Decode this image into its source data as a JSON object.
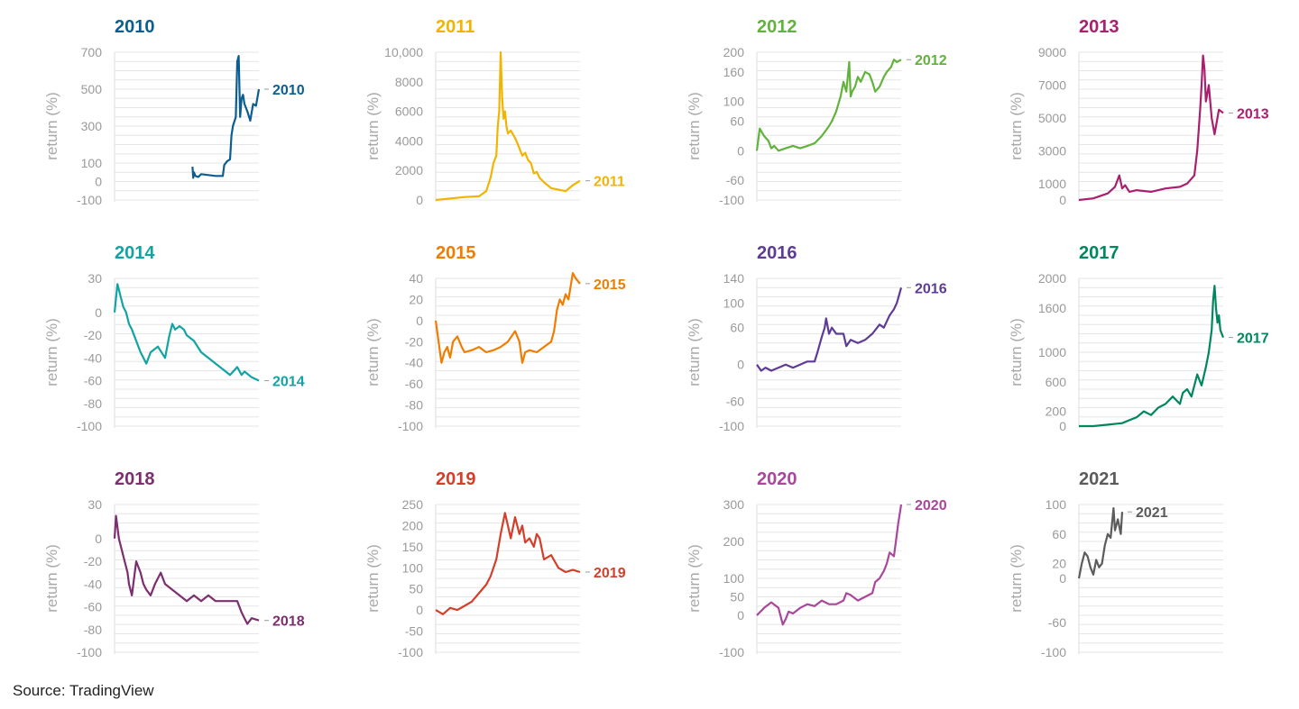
{
  "source": "Source: TradingView",
  "axis_label": "return (%)",
  "chart_data": [
    {
      "type": "line",
      "title": "2010",
      "color": "#0b5e8f",
      "end_label": "2010",
      "ylabel": "return (%)",
      "xlabel": "",
      "grid": true,
      "ylim": [
        -100,
        700
      ],
      "yticks": [
        700,
        500,
        300,
        100,
        0,
        -100
      ],
      "ytick_labels": [
        "700",
        "500",
        "300",
        "100",
        "0",
        "-100"
      ],
      "x": [
        0.54,
        0.545,
        0.55,
        0.56,
        0.58,
        0.6,
        0.65,
        0.7,
        0.75,
        0.76,
        0.78,
        0.8,
        0.81,
        0.82,
        0.84,
        0.85,
        0.86,
        0.87,
        0.88,
        0.89,
        0.9,
        0.92,
        0.94,
        0.96,
        0.98,
        1.0
      ],
      "values": [
        80,
        20,
        50,
        30,
        25,
        40,
        35,
        30,
        30,
        90,
        110,
        120,
        250,
        300,
        350,
        650,
        680,
        350,
        450,
        470,
        420,
        380,
        330,
        420,
        410,
        500
      ]
    },
    {
      "type": "line",
      "title": "2011",
      "color": "#f2b400",
      "end_label": "2011",
      "ylabel": "return (%)",
      "xlabel": "",
      "grid": true,
      "ylim": [
        0,
        10000
      ],
      "yticks": [
        10000,
        8000,
        6000,
        4000,
        2000,
        0
      ],
      "ytick_labels": [
        "10,000",
        "8000",
        "6000",
        "4000",
        "2000",
        "0"
      ],
      "x": [
        0.0,
        0.1,
        0.2,
        0.3,
        0.35,
        0.38,
        0.4,
        0.42,
        0.43,
        0.44,
        0.45,
        0.46,
        0.47,
        0.48,
        0.49,
        0.5,
        0.52,
        0.55,
        0.58,
        0.6,
        0.62,
        0.64,
        0.66,
        0.68,
        0.7,
        0.72,
        0.75,
        0.8,
        0.85,
        0.9,
        0.95,
        1.0
      ],
      "values": [
        0,
        100,
        200,
        250,
        600,
        1500,
        2500,
        3000,
        5000,
        6000,
        10000,
        7000,
        5500,
        6000,
        5000,
        4500,
        4700,
        4200,
        3500,
        3000,
        3200,
        2700,
        2500,
        1800,
        1900,
        1500,
        1200,
        800,
        700,
        600,
        1000,
        1300
      ]
    },
    {
      "type": "line",
      "title": "2012",
      "color": "#62b33b",
      "end_label": "2012",
      "ylabel": "return (%)",
      "xlabel": "",
      "grid": true,
      "ylim": [
        -100,
        200
      ],
      "yticks": [
        200,
        160,
        100,
        60,
        0,
        -60,
        -100
      ],
      "ytick_labels": [
        "200",
        "160",
        "100",
        "60",
        "0",
        "-60",
        "-100"
      ],
      "x": [
        0.0,
        0.02,
        0.05,
        0.08,
        0.1,
        0.12,
        0.15,
        0.2,
        0.25,
        0.3,
        0.35,
        0.4,
        0.45,
        0.5,
        0.52,
        0.55,
        0.58,
        0.6,
        0.62,
        0.64,
        0.65,
        0.66,
        0.68,
        0.7,
        0.72,
        0.75,
        0.78,
        0.8,
        0.82,
        0.85,
        0.88,
        0.9,
        0.93,
        0.95,
        0.97,
        1.0
      ],
      "values": [
        0,
        45,
        30,
        20,
        5,
        10,
        0,
        5,
        10,
        5,
        10,
        15,
        30,
        50,
        60,
        80,
        110,
        140,
        120,
        180,
        110,
        120,
        130,
        150,
        140,
        160,
        155,
        140,
        120,
        130,
        150,
        160,
        170,
        185,
        180,
        185
      ]
    },
    {
      "type": "line",
      "title": "2013",
      "color": "#a8206e",
      "end_label": "2013",
      "ylabel": "return (%)",
      "xlabel": "",
      "grid": true,
      "ylim": [
        0,
        9000
      ],
      "yticks": [
        9000,
        7000,
        5000,
        3000,
        1000,
        0
      ],
      "ytick_labels": [
        "9000",
        "7000",
        "5000",
        "3000",
        "1000",
        "0"
      ],
      "x": [
        0.0,
        0.1,
        0.2,
        0.25,
        0.28,
        0.3,
        0.32,
        0.35,
        0.4,
        0.5,
        0.6,
        0.7,
        0.75,
        0.8,
        0.82,
        0.84,
        0.85,
        0.86,
        0.87,
        0.88,
        0.9,
        0.92,
        0.94,
        0.95,
        0.97,
        1.0
      ],
      "values": [
        0,
        100,
        400,
        800,
        1500,
        700,
        900,
        500,
        600,
        500,
        700,
        800,
        1000,
        1500,
        3000,
        5500,
        7000,
        8800,
        8000,
        6000,
        7000,
        5000,
        4000,
        4500,
        5500,
        5300
      ]
    },
    {
      "type": "line",
      "title": "2014",
      "color": "#12a3a4",
      "end_label": "2014",
      "ylabel": "return (%)",
      "xlabel": "",
      "grid": true,
      "ylim": [
        -100,
        30
      ],
      "yticks": [
        30,
        0,
        -20,
        -40,
        -60,
        -80,
        -100
      ],
      "ytick_labels": [
        "30",
        "0",
        "-20",
        "-40",
        "-60",
        "-80",
        "-100"
      ],
      "x": [
        0.0,
        0.02,
        0.04,
        0.06,
        0.08,
        0.1,
        0.12,
        0.15,
        0.18,
        0.2,
        0.22,
        0.25,
        0.3,
        0.35,
        0.38,
        0.4,
        0.42,
        0.45,
        0.48,
        0.5,
        0.55,
        0.6,
        0.65,
        0.7,
        0.75,
        0.8,
        0.85,
        0.88,
        0.9,
        0.95,
        1.0
      ],
      "values": [
        0,
        25,
        15,
        5,
        0,
        -10,
        -15,
        -25,
        -35,
        -40,
        -45,
        -35,
        -30,
        -40,
        -20,
        -10,
        -15,
        -12,
        -15,
        -20,
        -25,
        -35,
        -40,
        -45,
        -50,
        -55,
        -48,
        -55,
        -52,
        -57,
        -60
      ]
    },
    {
      "type": "line",
      "title": "2015",
      "color": "#f07d00",
      "end_label": "2015",
      "ylabel": "return (%)",
      "xlabel": "",
      "grid": true,
      "ylim": [
        -100,
        50
      ],
      "yticks": [
        40,
        20,
        0,
        -20,
        -40,
        -60,
        -80,
        -100
      ],
      "ytick_labels": [
        "40",
        "20",
        "0",
        "-20",
        "-40",
        "-60",
        "-80",
        "-100"
      ],
      "x": [
        0.0,
        0.02,
        0.04,
        0.06,
        0.08,
        0.1,
        0.12,
        0.15,
        0.18,
        0.2,
        0.25,
        0.3,
        0.35,
        0.4,
        0.45,
        0.5,
        0.55,
        0.58,
        0.6,
        0.62,
        0.65,
        0.7,
        0.75,
        0.8,
        0.82,
        0.84,
        0.86,
        0.88,
        0.9,
        0.92,
        0.95,
        0.97,
        1.0
      ],
      "values": [
        0,
        -20,
        -40,
        -30,
        -25,
        -35,
        -20,
        -15,
        -25,
        -30,
        -28,
        -25,
        -30,
        -28,
        -25,
        -20,
        -10,
        -20,
        -40,
        -30,
        -28,
        -30,
        -25,
        -20,
        -10,
        10,
        20,
        15,
        25,
        20,
        45,
        40,
        35
      ]
    },
    {
      "type": "line",
      "title": "2016",
      "color": "#5d3b96",
      "end_label": "2016",
      "ylabel": "return (%)",
      "xlabel": "",
      "grid": true,
      "ylim": [
        -100,
        140
      ],
      "yticks": [
        140,
        100,
        60,
        0,
        -60,
        -100
      ],
      "ytick_labels": [
        "140",
        "100",
        "60",
        "0",
        "-60",
        "-100"
      ],
      "x": [
        0.0,
        0.03,
        0.06,
        0.1,
        0.15,
        0.2,
        0.25,
        0.3,
        0.35,
        0.4,
        0.42,
        0.45,
        0.47,
        0.48,
        0.5,
        0.52,
        0.55,
        0.6,
        0.62,
        0.65,
        0.7,
        0.75,
        0.8,
        0.85,
        0.88,
        0.9,
        0.92,
        0.95,
        0.97,
        1.0
      ],
      "values": [
        0,
        -10,
        -5,
        -10,
        -5,
        0,
        -5,
        0,
        5,
        5,
        20,
        45,
        60,
        75,
        50,
        60,
        50,
        50,
        30,
        40,
        35,
        40,
        50,
        65,
        60,
        70,
        80,
        90,
        100,
        125
      ]
    },
    {
      "type": "line",
      "title": "2017",
      "color": "#00875f",
      "end_label": "2017",
      "ylabel": "return (%)",
      "xlabel": "",
      "grid": true,
      "ylim": [
        0,
        2000
      ],
      "yticks": [
        2000,
        1600,
        1000,
        600,
        200,
        0
      ],
      "ytick_labels": [
        "2000",
        "1600",
        "1000",
        "600",
        "200",
        "0"
      ],
      "x": [
        0.0,
        0.1,
        0.2,
        0.3,
        0.35,
        0.4,
        0.45,
        0.5,
        0.55,
        0.6,
        0.65,
        0.7,
        0.72,
        0.75,
        0.78,
        0.8,
        0.82,
        0.85,
        0.88,
        0.9,
        0.92,
        0.93,
        0.94,
        0.95,
        0.96,
        0.97,
        0.98,
        1.0
      ],
      "values": [
        0,
        0,
        20,
        40,
        80,
        120,
        200,
        150,
        250,
        300,
        400,
        300,
        450,
        500,
        400,
        550,
        700,
        550,
        800,
        1000,
        1300,
        1700,
        1900,
        1600,
        1400,
        1500,
        1300,
        1200
      ]
    },
    {
      "type": "line",
      "title": "2018",
      "color": "#7b2f6e",
      "end_label": "2018",
      "ylabel": "return (%)",
      "xlabel": "",
      "grid": true,
      "ylim": [
        -100,
        30
      ],
      "yticks": [
        30,
        0,
        -20,
        -40,
        -60,
        -80,
        -100
      ],
      "ytick_labels": [
        "30",
        "0",
        "-20",
        "-40",
        "-60",
        "-80",
        "-100"
      ],
      "x": [
        0.0,
        0.01,
        0.02,
        0.03,
        0.05,
        0.07,
        0.09,
        0.1,
        0.12,
        0.15,
        0.18,
        0.2,
        0.22,
        0.25,
        0.28,
        0.3,
        0.32,
        0.35,
        0.4,
        0.45,
        0.5,
        0.55,
        0.6,
        0.65,
        0.7,
        0.75,
        0.8,
        0.85,
        0.88,
        0.9,
        0.92,
        0.95,
        1.0
      ],
      "values": [
        0,
        20,
        10,
        0,
        -10,
        -20,
        -30,
        -40,
        -50,
        -20,
        -30,
        -40,
        -45,
        -50,
        -40,
        -35,
        -30,
        -40,
        -45,
        -50,
        -55,
        -50,
        -55,
        -50,
        -55,
        -55,
        -55,
        -55,
        -65,
        -70,
        -75,
        -70,
        -72
      ]
    },
    {
      "type": "line",
      "title": "2019",
      "color": "#d33f2a",
      "end_label": "2019",
      "ylabel": "return (%)",
      "xlabel": "",
      "grid": true,
      "ylim": [
        -100,
        250
      ],
      "yticks": [
        250,
        200,
        150,
        100,
        50,
        0,
        -50,
        -100
      ],
      "ytick_labels": [
        "250",
        "200",
        "150",
        "100",
        "50",
        "0",
        "-50",
        "-100"
      ],
      "x": [
        0.0,
        0.05,
        0.1,
        0.15,
        0.2,
        0.25,
        0.3,
        0.35,
        0.38,
        0.4,
        0.42,
        0.45,
        0.48,
        0.5,
        0.52,
        0.55,
        0.58,
        0.6,
        0.62,
        0.65,
        0.68,
        0.7,
        0.72,
        0.75,
        0.8,
        0.85,
        0.9,
        0.95,
        1.0
      ],
      "values": [
        0,
        -10,
        5,
        0,
        10,
        20,
        40,
        60,
        80,
        100,
        120,
        180,
        230,
        200,
        170,
        220,
        180,
        200,
        160,
        170,
        150,
        180,
        170,
        120,
        130,
        100,
        90,
        95,
        90
      ]
    },
    {
      "type": "line",
      "title": "2020",
      "color": "#a8479b",
      "end_label": "2020",
      "ylabel": "return (%)",
      "xlabel": "",
      "grid": true,
      "ylim": [
        -100,
        320
      ],
      "yticks": [
        300,
        200,
        100,
        50,
        0,
        -100
      ],
      "ytick_labels": [
        "300",
        "200",
        "100",
        "50",
        "0",
        "-100"
      ],
      "x": [
        0.0,
        0.05,
        0.1,
        0.15,
        0.18,
        0.2,
        0.22,
        0.25,
        0.3,
        0.35,
        0.4,
        0.45,
        0.5,
        0.55,
        0.6,
        0.62,
        0.65,
        0.7,
        0.75,
        0.8,
        0.82,
        0.85,
        0.88,
        0.9,
        0.92,
        0.95,
        0.97,
        0.98,
        1.0
      ],
      "values": [
        0,
        20,
        35,
        20,
        -25,
        -10,
        10,
        5,
        20,
        30,
        25,
        40,
        30,
        30,
        40,
        60,
        55,
        40,
        50,
        60,
        90,
        100,
        120,
        140,
        170,
        160,
        220,
        250,
        300
      ]
    },
    {
      "type": "line",
      "title": "2021",
      "color": "#5b5b5b",
      "end_label": "2021",
      "ylabel": "return (%)",
      "xlabel": "",
      "grid": true,
      "ylim": [
        -100,
        100
      ],
      "yticks": [
        100,
        60,
        20,
        0,
        -60,
        -100
      ],
      "ytick_labels": [
        "100",
        "60",
        "20",
        "0",
        "-60",
        "-100"
      ],
      "x": [
        0.0,
        0.02,
        0.04,
        0.06,
        0.08,
        0.1,
        0.12,
        0.14,
        0.16,
        0.18,
        0.2,
        0.22,
        0.24,
        0.25,
        0.27,
        0.29,
        0.3
      ],
      "values": [
        0,
        20,
        35,
        30,
        15,
        5,
        25,
        15,
        20,
        45,
        60,
        55,
        95,
        65,
        80,
        60,
        90
      ]
    }
  ]
}
